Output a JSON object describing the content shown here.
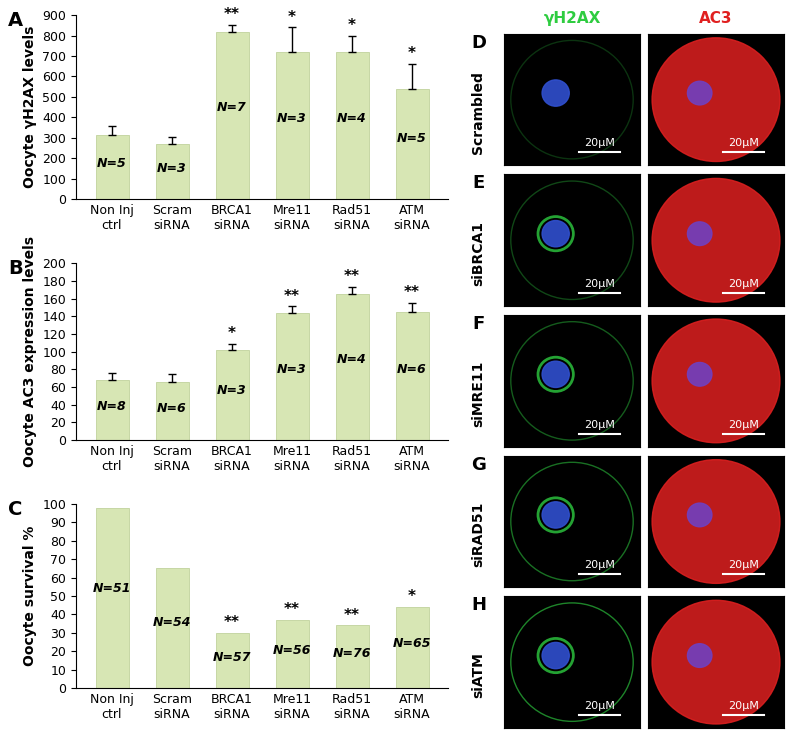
{
  "chart_data": [
    {
      "type": "bar",
      "panel": "A",
      "y_label": "Oocyte γH2AX levels",
      "categories": [
        "Non Inj\nctrl",
        "Scram\nsiRNA",
        "BRCA1\nsiRNA",
        "Mre11\nsiRNA",
        "Rad51\nsiRNA",
        "ATM\nsiRNA"
      ],
      "values": [
        315,
        270,
        815,
        720,
        720,
        540
      ],
      "errors": [
        45,
        35,
        35,
        120,
        80,
        120
      ],
      "n_labels": [
        "N=5",
        "N=3",
        "N=7",
        "N=3",
        "N=4",
        "N=5"
      ],
      "significance": [
        null,
        null,
        "**",
        "*",
        "*",
        "*"
      ],
      "color": "#d7e6b4",
      "ylim": [
        0,
        900
      ],
      "yticks": [
        0,
        100,
        200,
        300,
        400,
        500,
        600,
        700,
        800,
        900
      ],
      "grid": false
    },
    {
      "type": "bar",
      "panel": "B",
      "y_label": "Oocyte AC3 expression levels",
      "categories": [
        "Non Inj\nctrl",
        "Scram\nsiRNA",
        "BRCA1\nsiRNA",
        "Mre11\nsiRNA",
        "Rad51\nsiRNA",
        "ATM\nsiRNA"
      ],
      "values": [
        68,
        65,
        102,
        144,
        165,
        145
      ],
      "errors": [
        8,
        10,
        7,
        7,
        8,
        10
      ],
      "n_labels": [
        "N=8",
        "N=6",
        "N=3",
        "N=3",
        "N=4",
        "N=6"
      ],
      "significance": [
        null,
        null,
        "*",
        "**",
        "**",
        "**"
      ],
      "color": "#d7e6b4",
      "ylim": [
        0,
        200
      ],
      "yticks": [
        0,
        20,
        40,
        60,
        80,
        100,
        120,
        140,
        160,
        180,
        200
      ],
      "grid": false
    },
    {
      "type": "bar",
      "panel": "C",
      "y_label": "Oocyte survival %",
      "categories": [
        "Non Inj\nctrl",
        "Scram\nsiRNA",
        "BRCA1\nsiRNA",
        "Mre11\nsiRNA",
        "Rad51\nsiRNA",
        "ATM\nsiRNA"
      ],
      "values": [
        98,
        65,
        30,
        37,
        34,
        44
      ],
      "n_labels": [
        "N=51",
        "N=54",
        "N=57",
        "N=56",
        "N=76",
        "N=65"
      ],
      "significance": [
        null,
        null,
        "**",
        "**",
        "**",
        "*"
      ],
      "color": "#d7e6b4",
      "ylim": [
        0,
        100
      ],
      "yticks": [
        0,
        10,
        20,
        30,
        40,
        50,
        60,
        70,
        80,
        90,
        100
      ],
      "grid": false
    }
  ],
  "image_panels": {
    "columns": [
      {
        "label": "γH2AX",
        "color": "#2ecc40"
      },
      {
        "label": "AC3",
        "color": "#e02020"
      }
    ],
    "rows": [
      {
        "panel": "D",
        "label": "Scrambled"
      },
      {
        "panel": "E",
        "label": "siBRCA1"
      },
      {
        "panel": "F",
        "label": "siMRE11"
      },
      {
        "panel": "G",
        "label": "siRAD51"
      },
      {
        "panel": "H",
        "label": "siATM"
      }
    ],
    "scale_bar": "20μM"
  }
}
